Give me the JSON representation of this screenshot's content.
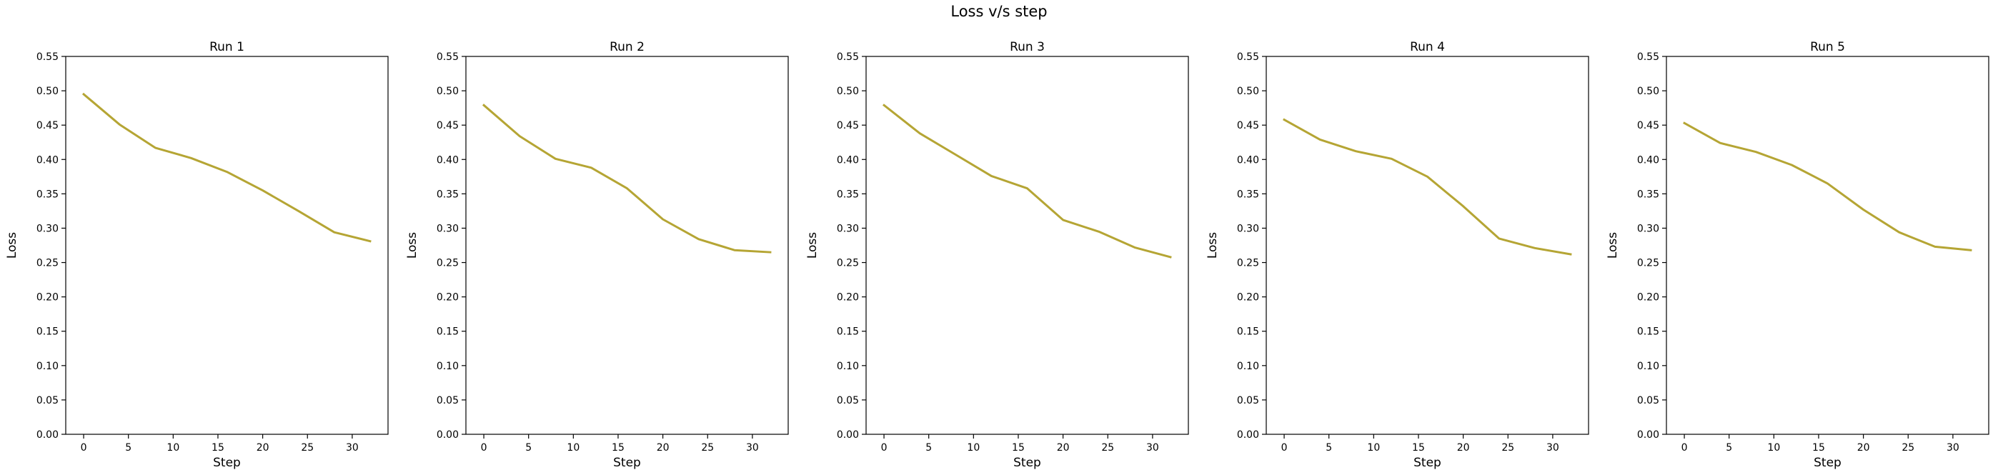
{
  "figure": {
    "title": "Loss v/s step"
  },
  "chart_data": [
    {
      "type": "line",
      "title": "Run 1",
      "xlabel": "Step",
      "ylabel": "Loss",
      "xlim": [
        -2,
        34
      ],
      "ylim": [
        0,
        0.55
      ],
      "xticks": [
        0,
        5,
        10,
        15,
        20,
        25,
        30
      ],
      "yticks": [
        0.0,
        0.05,
        0.1,
        0.15,
        0.2,
        0.25,
        0.3,
        0.35,
        0.4,
        0.45,
        0.5,
        0.55
      ],
      "grid": false,
      "color": "#b5a534",
      "x": [
        0,
        4,
        8,
        12,
        16,
        20,
        24,
        28,
        32
      ],
      "y": [
        0.495,
        0.451,
        0.417,
        0.402,
        0.382,
        0.355,
        0.325,
        0.294,
        0.281
      ]
    },
    {
      "type": "line",
      "title": "Run 2",
      "xlabel": "Step",
      "ylabel": "Loss",
      "xlim": [
        -2,
        34
      ],
      "ylim": [
        0,
        0.55
      ],
      "xticks": [
        0,
        5,
        10,
        15,
        20,
        25,
        30
      ],
      "yticks": [
        0.0,
        0.05,
        0.1,
        0.15,
        0.2,
        0.25,
        0.3,
        0.35,
        0.4,
        0.45,
        0.5,
        0.55
      ],
      "grid": false,
      "color": "#b5a534",
      "x": [
        0,
        4,
        8,
        12,
        16,
        20,
        24,
        28,
        32
      ],
      "y": [
        0.479,
        0.434,
        0.401,
        0.388,
        0.358,
        0.313,
        0.284,
        0.268,
        0.265
      ]
    },
    {
      "type": "line",
      "title": "Run 3",
      "xlabel": "Step",
      "ylabel": "Loss",
      "xlim": [
        -2,
        34
      ],
      "ylim": [
        0,
        0.55
      ],
      "xticks": [
        0,
        5,
        10,
        15,
        20,
        25,
        30
      ],
      "yticks": [
        0.0,
        0.05,
        0.1,
        0.15,
        0.2,
        0.25,
        0.3,
        0.35,
        0.4,
        0.45,
        0.5,
        0.55
      ],
      "grid": false,
      "color": "#b5a534",
      "x": [
        0,
        4,
        8,
        12,
        16,
        20,
        24,
        28,
        32
      ],
      "y": [
        0.479,
        0.438,
        0.407,
        0.376,
        0.358,
        0.312,
        0.295,
        0.272,
        0.258
      ]
    },
    {
      "type": "line",
      "title": "Run 4",
      "xlabel": "Step",
      "ylabel": "Loss",
      "xlim": [
        -2,
        34
      ],
      "ylim": [
        0,
        0.55
      ],
      "xticks": [
        0,
        5,
        10,
        15,
        20,
        25,
        30
      ],
      "yticks": [
        0.0,
        0.05,
        0.1,
        0.15,
        0.2,
        0.25,
        0.3,
        0.35,
        0.4,
        0.45,
        0.5,
        0.55
      ],
      "grid": false,
      "color": "#b5a534",
      "x": [
        0,
        4,
        8,
        12,
        16,
        20,
        24,
        28,
        32
      ],
      "y": [
        0.458,
        0.429,
        0.412,
        0.401,
        0.375,
        0.332,
        0.285,
        0.271,
        0.262
      ]
    },
    {
      "type": "line",
      "title": "Run 5",
      "xlabel": "Step",
      "ylabel": "Loss",
      "xlim": [
        -2,
        34
      ],
      "ylim": [
        0,
        0.55
      ],
      "xticks": [
        0,
        5,
        10,
        15,
        20,
        25,
        30
      ],
      "yticks": [
        0.0,
        0.05,
        0.1,
        0.15,
        0.2,
        0.25,
        0.3,
        0.35,
        0.4,
        0.45,
        0.5,
        0.55
      ],
      "grid": false,
      "color": "#b5a534",
      "x": [
        0,
        4,
        8,
        12,
        16,
        20,
        24,
        28,
        32
      ],
      "y": [
        0.453,
        0.424,
        0.411,
        0.392,
        0.365,
        0.327,
        0.294,
        0.273,
        0.268
      ]
    }
  ]
}
